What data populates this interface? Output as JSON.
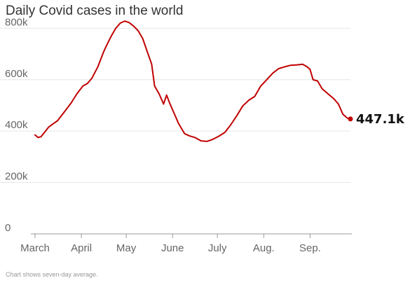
{
  "chart_data": {
    "type": "line",
    "title": "Daily Covid cases in the world",
    "footnote": "Chart shows seven-day average.",
    "xlabel": "",
    "ylabel": "",
    "x_start": "2021-03-01",
    "x_end": "2021-09-28",
    "x_ticks": [
      {
        "date": "2021-03-01",
        "label": "March"
      },
      {
        "date": "2021-04-01",
        "label": "April"
      },
      {
        "date": "2021-05-01",
        "label": "May"
      },
      {
        "date": "2021-06-01",
        "label": "June"
      },
      {
        "date": "2021-07-01",
        "label": "July"
      },
      {
        "date": "2021-08-01",
        "label": "Aug."
      },
      {
        "date": "2021-09-01",
        "label": "Sep."
      }
    ],
    "y_ticks": [
      {
        "value": 0,
        "label": "0"
      },
      {
        "value": 200000,
        "label": "200k"
      },
      {
        "value": 400000,
        "label": "400k"
      },
      {
        "value": 600000,
        "label": "600k"
      },
      {
        "value": 800000,
        "label": "800k"
      }
    ],
    "ylim": [
      0,
      850000
    ],
    "grid": true,
    "line_color": "#c00000",
    "series": [
      {
        "points": [
          [
            "2021-03-01",
            385000
          ],
          [
            "2021-03-03",
            375000
          ],
          [
            "2021-03-05",
            378000
          ],
          [
            "2021-03-08",
            400000
          ],
          [
            "2021-03-10",
            415000
          ],
          [
            "2021-03-13",
            428000
          ],
          [
            "2021-03-16",
            440000
          ],
          [
            "2021-03-20",
            470000
          ],
          [
            "2021-03-25",
            508000
          ],
          [
            "2021-03-29",
            545000
          ],
          [
            "2021-04-02",
            575000
          ],
          [
            "2021-04-05",
            585000
          ],
          [
            "2021-04-08",
            605000
          ],
          [
            "2021-04-12",
            650000
          ],
          [
            "2021-04-16",
            710000
          ],
          [
            "2021-04-18",
            735000
          ],
          [
            "2021-04-21",
            770000
          ],
          [
            "2021-04-24",
            800000
          ],
          [
            "2021-04-27",
            820000
          ],
          [
            "2021-04-30",
            828000
          ],
          [
            "2021-05-03",
            822000
          ],
          [
            "2021-05-06",
            808000
          ],
          [
            "2021-05-09",
            790000
          ],
          [
            "2021-05-12",
            760000
          ],
          [
            "2021-05-15",
            710000
          ],
          [
            "2021-05-18",
            660000
          ],
          [
            "2021-05-20",
            575000
          ],
          [
            "2021-05-23",
            545000
          ],
          [
            "2021-05-26",
            505000
          ],
          [
            "2021-05-28",
            540000
          ],
          [
            "2021-05-30",
            510000
          ],
          [
            "2021-06-02",
            470000
          ],
          [
            "2021-06-05",
            430000
          ],
          [
            "2021-06-09",
            390000
          ],
          [
            "2021-06-12",
            382000
          ],
          [
            "2021-06-16",
            375000
          ],
          [
            "2021-06-20",
            362000
          ],
          [
            "2021-06-24",
            360000
          ],
          [
            "2021-06-28",
            368000
          ],
          [
            "2021-07-02",
            380000
          ],
          [
            "2021-07-06",
            395000
          ],
          [
            "2021-07-10",
            425000
          ],
          [
            "2021-07-14",
            460000
          ],
          [
            "2021-07-18",
            498000
          ],
          [
            "2021-07-22",
            520000
          ],
          [
            "2021-07-26",
            535000
          ],
          [
            "2021-07-30",
            575000
          ],
          [
            "2021-08-03",
            600000
          ],
          [
            "2021-08-07",
            625000
          ],
          [
            "2021-08-11",
            643000
          ],
          [
            "2021-08-15",
            650000
          ],
          [
            "2021-08-19",
            656000
          ],
          [
            "2021-08-23",
            657000
          ],
          [
            "2021-08-27",
            660000
          ],
          [
            "2021-08-30",
            650000
          ],
          [
            "2021-09-01",
            640000
          ],
          [
            "2021-09-03",
            600000
          ],
          [
            "2021-09-06",
            595000
          ],
          [
            "2021-09-09",
            565000
          ],
          [
            "2021-09-13",
            545000
          ],
          [
            "2021-09-17",
            525000
          ],
          [
            "2021-09-20",
            505000
          ],
          [
            "2021-09-23",
            465000
          ],
          [
            "2021-09-26",
            450000
          ],
          [
            "2021-09-28",
            447100
          ]
        ]
      }
    ],
    "end_label": "447.1k"
  }
}
